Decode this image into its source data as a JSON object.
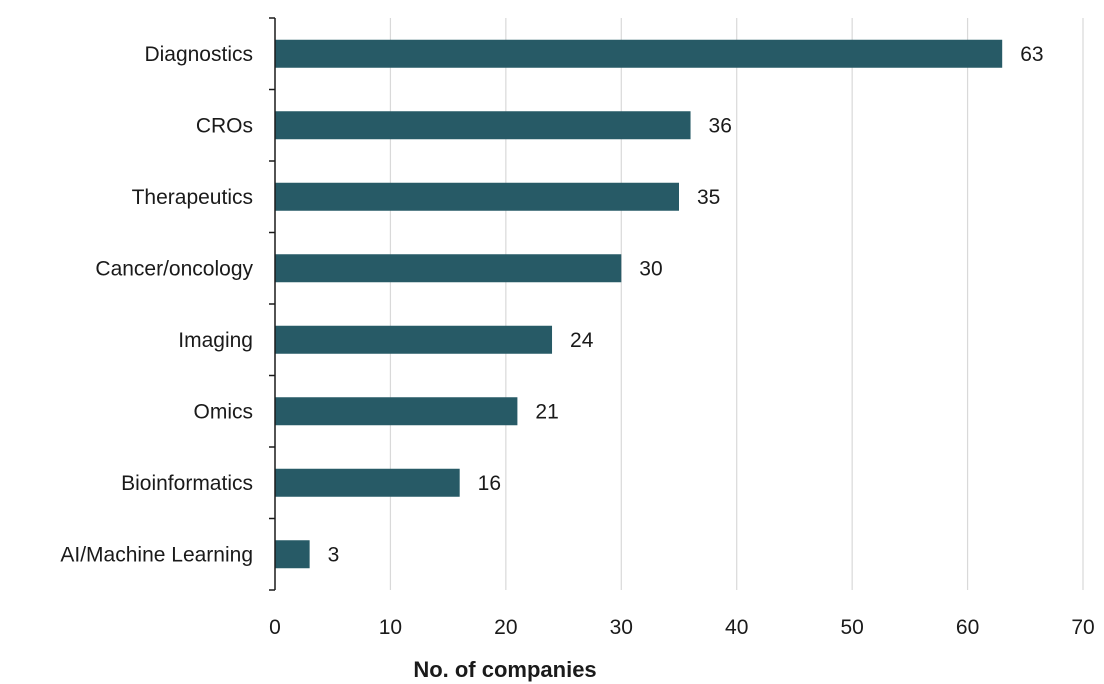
{
  "chart_data": {
    "type": "bar",
    "orientation": "horizontal",
    "categories": [
      "Diagnostics",
      "CROs",
      "Therapeutics",
      "Cancer/oncology",
      "Imaging",
      "Omics",
      "Bioinformatics",
      "AI/Machine Learning"
    ],
    "values": [
      63,
      36,
      35,
      30,
      24,
      21,
      16,
      3
    ],
    "data_labels": [
      "63",
      "36",
      "35",
      "30",
      "24",
      "21",
      "16",
      "3"
    ],
    "title": "",
    "xlabel": "No. of companies",
    "ylabel": "",
    "xlim": [
      0,
      70
    ],
    "x_ticks": [
      0,
      10,
      20,
      30,
      40,
      50,
      60,
      70
    ],
    "x_tick_labels": [
      "0",
      "10",
      "20",
      "30",
      "40",
      "50",
      "60",
      "70"
    ],
    "grid": "vertical",
    "legend": "none",
    "bar_color": "#275a66",
    "grid_color": "#d9d9d9",
    "axis_color": "#1a1a1a"
  }
}
